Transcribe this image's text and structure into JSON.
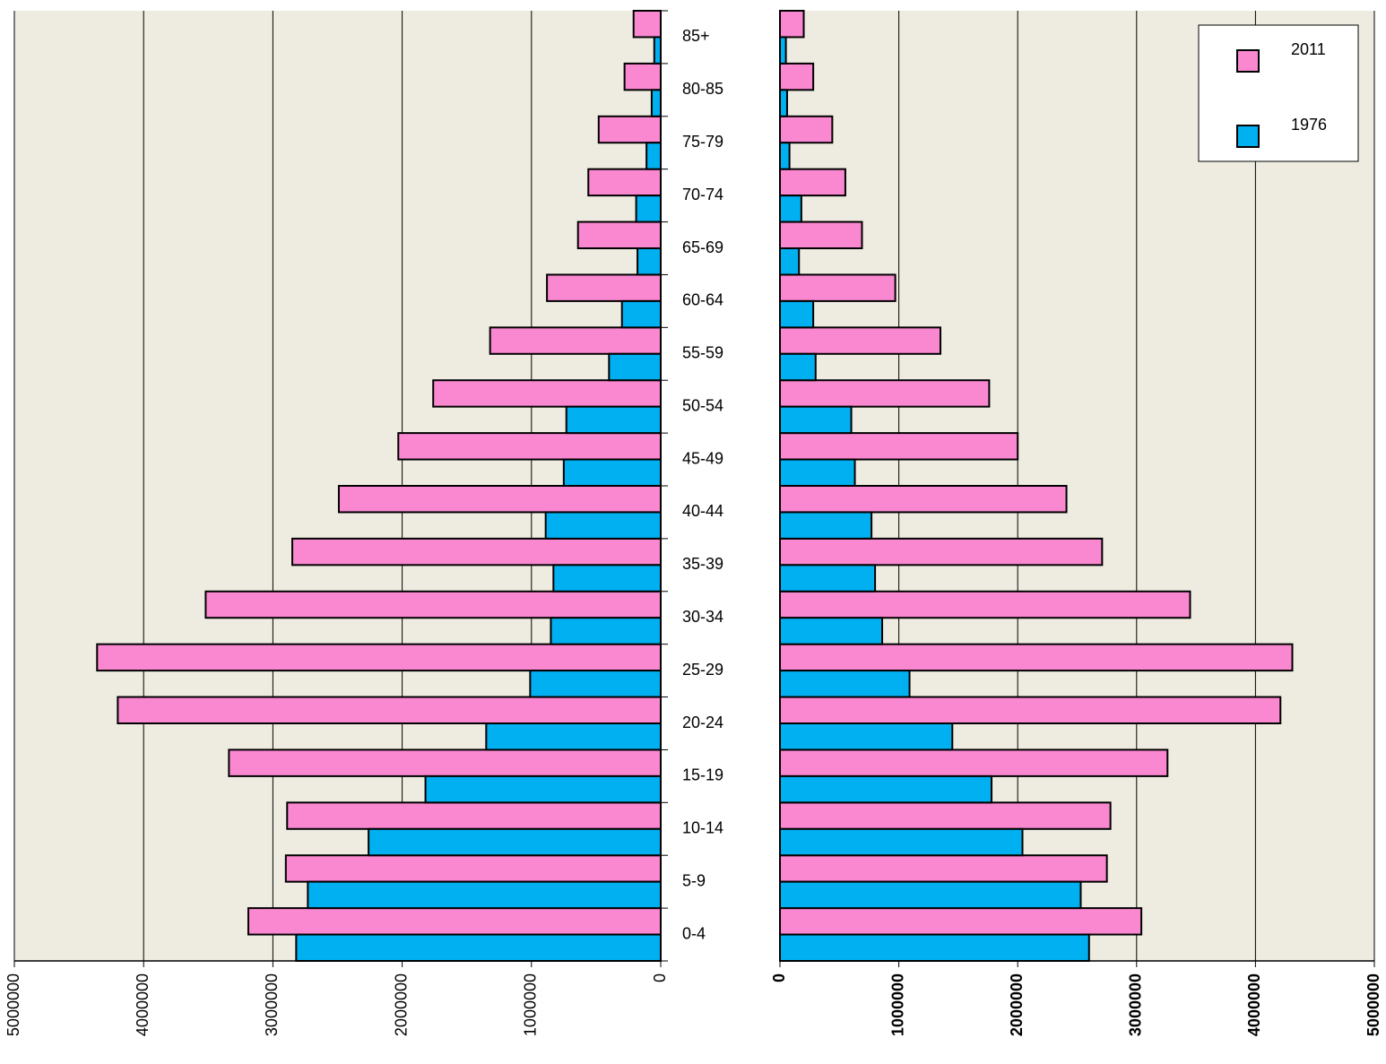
{
  "chart_data": [
    {
      "type": "bar",
      "orientation": "horizontal",
      "x_reversed": true,
      "categories": [
        "0-4",
        "5-9",
        "10-14",
        "15-19",
        "20-24",
        "25-29",
        "30-34",
        "35-39",
        "40-44",
        "45-49",
        "50-54",
        "55-59",
        "60-64",
        "65-69",
        "70-74",
        "75-79",
        "80-85",
        "85+"
      ],
      "series": [
        {
          "color": "#f988d0",
          "values": [
            3190000,
            2900000,
            2890000,
            3340000,
            4200000,
            4360000,
            3520000,
            2850000,
            2490000,
            2030000,
            1760000,
            1320000,
            880000,
            640000,
            560000,
            480000,
            280000,
            210000
          ]
        },
        {
          "color": "#00b0f0",
          "values": [
            2820000,
            2730000,
            2260000,
            1820000,
            1350000,
            1010000,
            850000,
            830000,
            890000,
            750000,
            730000,
            400000,
            300000,
            180000,
            190000,
            110000,
            70000,
            50000
          ]
        }
      ],
      "xlim": [
        0,
        5000000
      ],
      "xticks": [
        0,
        1000000,
        2000000,
        3000000,
        4000000,
        5000000
      ],
      "grid": true
    },
    {
      "type": "bar",
      "orientation": "horizontal",
      "series": [
        {
          "name": "2011",
          "color": "#f988d0",
          "values": [
            3040000,
            2750000,
            2780000,
            3260000,
            4210000,
            4310000,
            3450000,
            2710000,
            2410000,
            2000000,
            1760000,
            1350000,
            970000,
            690000,
            550000,
            440000,
            280000,
            200000
          ]
        },
        {
          "name": "1976",
          "color": "#00b0f0",
          "values": [
            2600000,
            2530000,
            2040000,
            1780000,
            1450000,
            1090000,
            860000,
            800000,
            770000,
            630000,
            600000,
            300000,
            280000,
            160000,
            180000,
            80000,
            60000,
            50000
          ]
        }
      ],
      "xlim": [
        0,
        5000000
      ],
      "xticks": [
        0,
        1000000,
        2000000,
        3000000,
        4000000,
        5000000
      ],
      "grid": true,
      "legend": "top-right"
    }
  ]
}
